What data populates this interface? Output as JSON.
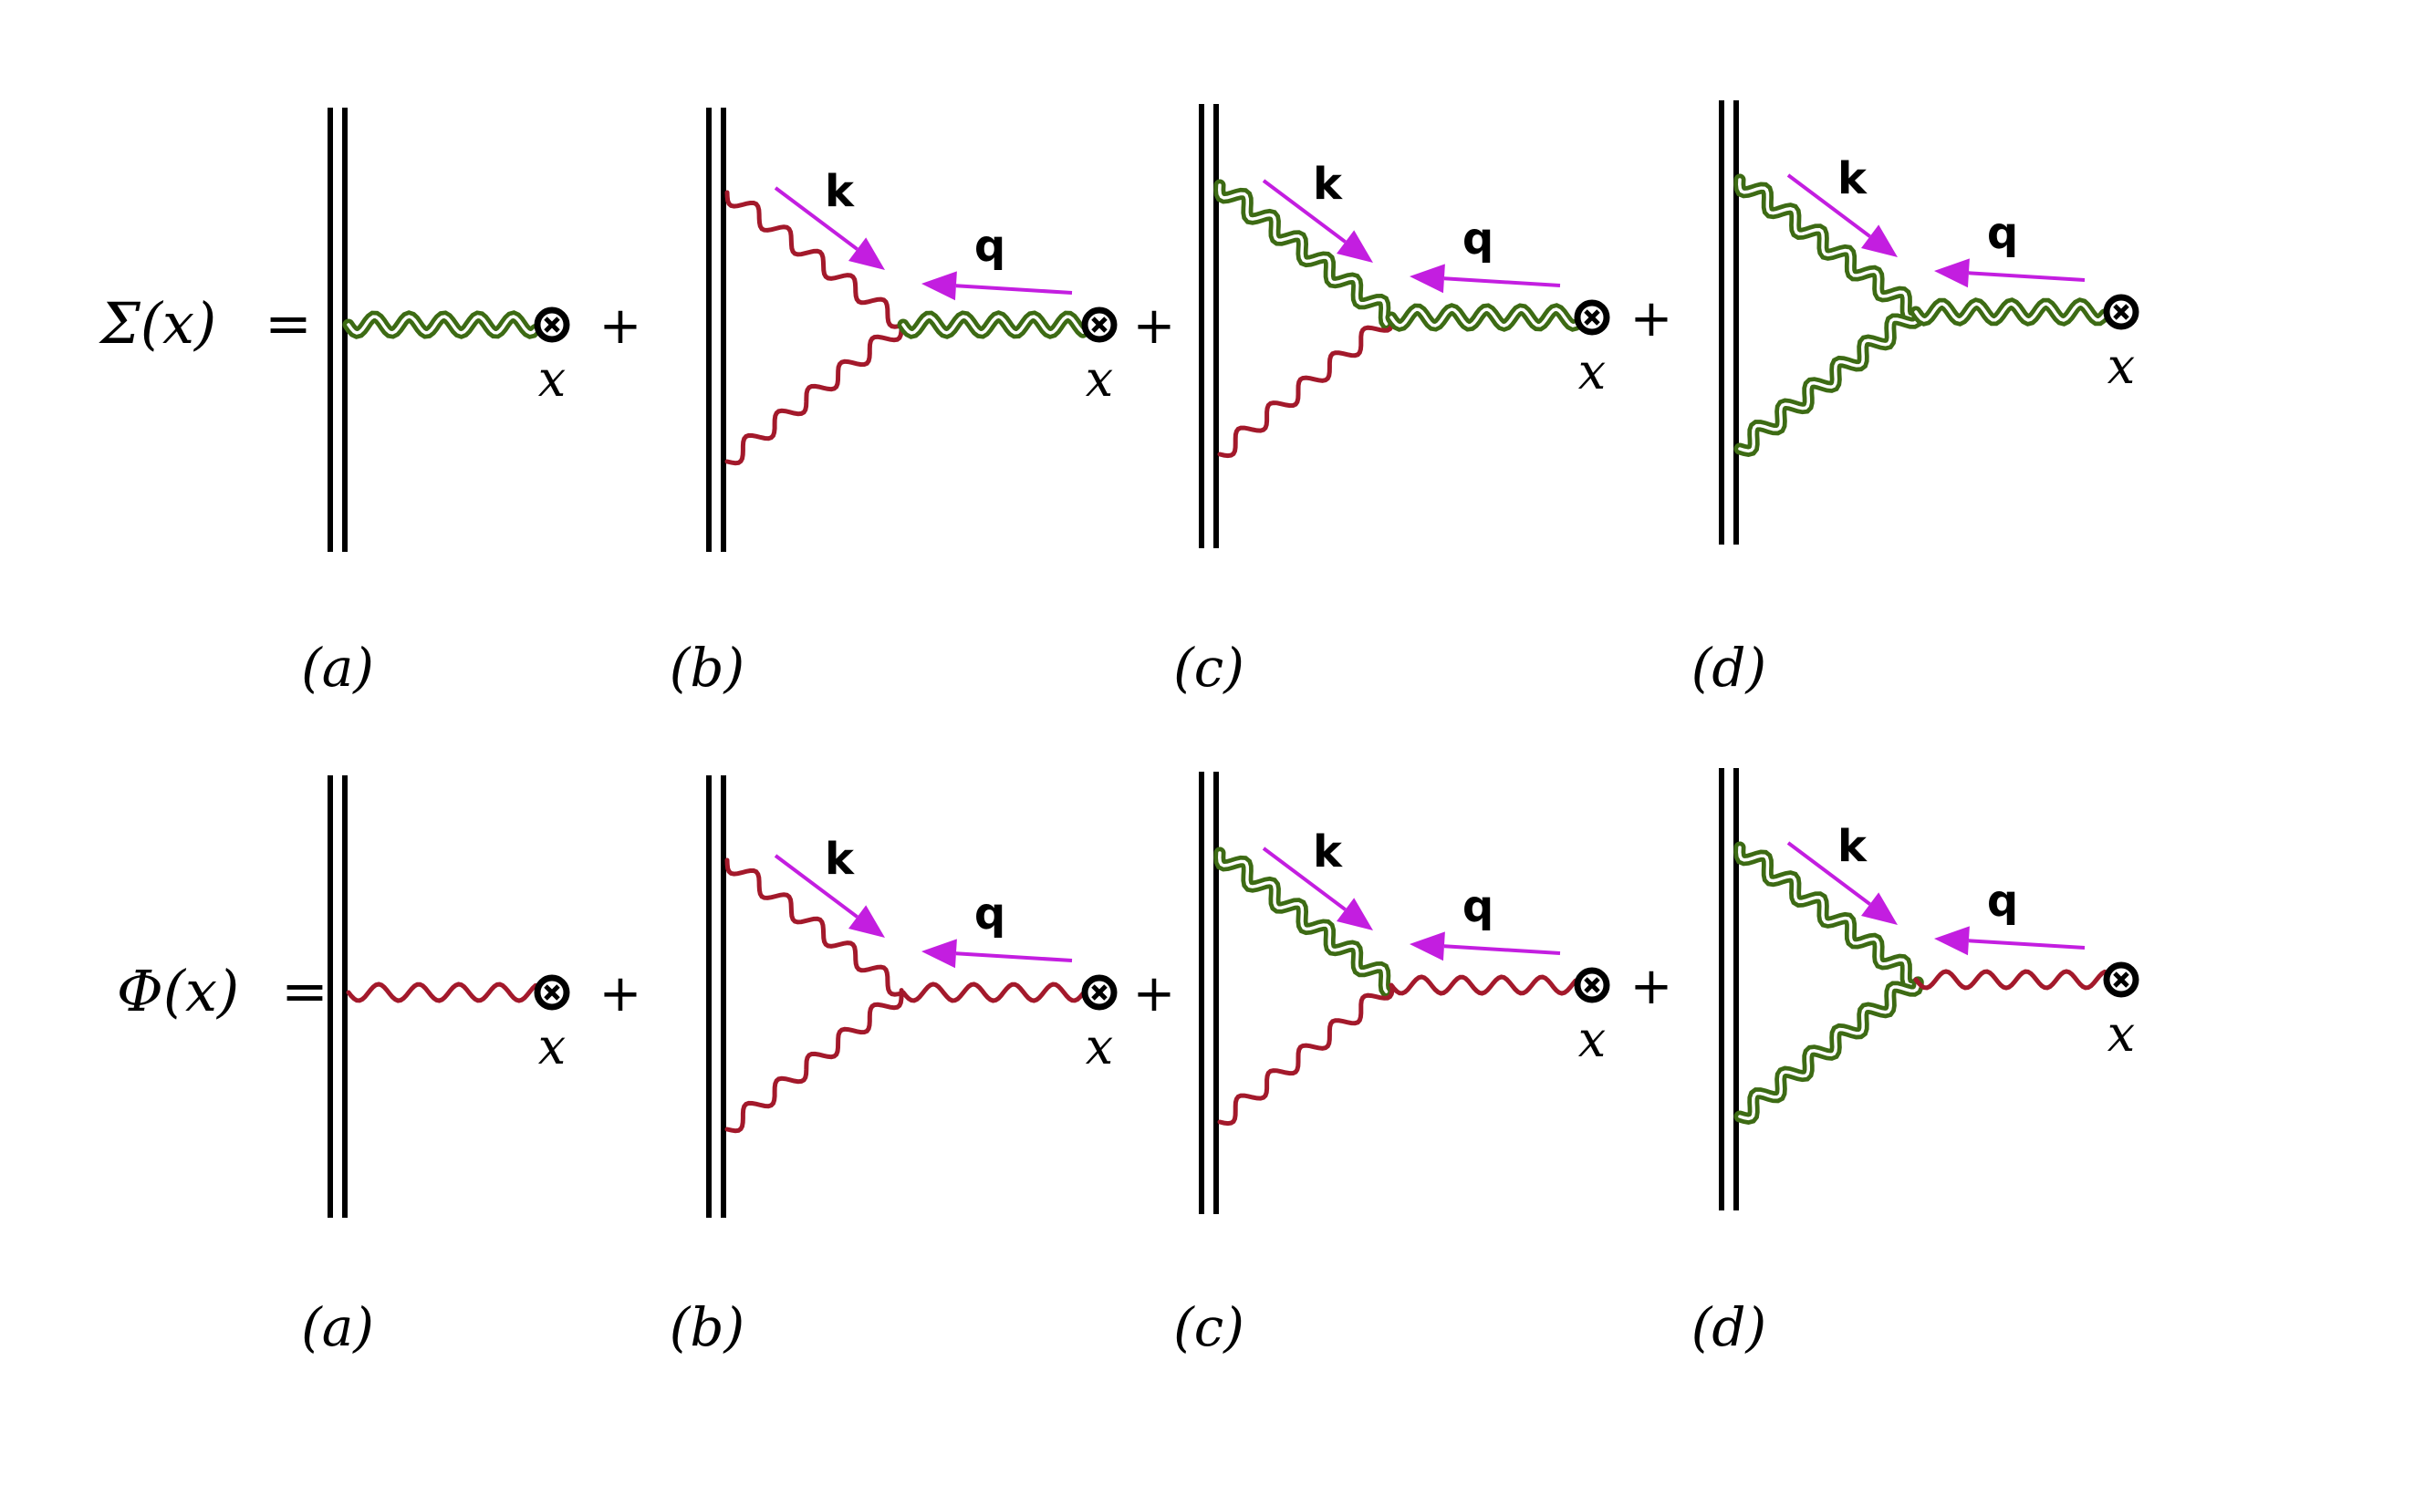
{
  "rows": [
    {
      "lhs_symbol": "Σ",
      "lhs_arg": "(x)",
      "equals": "=",
      "propagator": "photon-double-green",
      "panels": [
        {
          "label": "(a)",
          "type": "tree",
          "plus": "+",
          "x_label": "x"
        },
        {
          "label": "(b)",
          "type": "vertex",
          "upper": "single-red",
          "lower": "single-red",
          "k": "k",
          "q": "q",
          "plus": "+",
          "x_label": "x"
        },
        {
          "label": "(c)",
          "type": "vertex",
          "upper": "double-green",
          "lower": "single-red",
          "k": "k",
          "q": "q",
          "plus": "+",
          "x_label": "x"
        },
        {
          "label": "(d)",
          "type": "vertex",
          "upper": "double-green",
          "lower": "double-green",
          "k": "k",
          "q": "q",
          "plus": "",
          "x_label": "x"
        }
      ]
    },
    {
      "lhs_symbol": "Φ",
      "lhs_arg": "(x)",
      "equals": "=",
      "propagator": "single-red",
      "panels": [
        {
          "label": "(a)",
          "type": "tree",
          "plus": "+",
          "x_label": "x"
        },
        {
          "label": "(b)",
          "type": "vertex",
          "upper": "single-red",
          "lower": "single-red",
          "k": "k",
          "q": "q",
          "plus": "+",
          "x_label": "x"
        },
        {
          "label": "(c)",
          "type": "vertex",
          "upper": "double-green",
          "lower": "single-red",
          "k": "k",
          "q": "q",
          "plus": "+",
          "x_label": "x"
        },
        {
          "label": "(d)",
          "type": "vertex",
          "upper": "double-green",
          "lower": "double-green",
          "k": "k",
          "q": "q",
          "plus": "",
          "x_label": "x"
        }
      ]
    }
  ],
  "colors": {
    "green": "#3d6b14",
    "red": "#a3192b",
    "arrow": "#c31ee0",
    "ink": "#000000"
  }
}
